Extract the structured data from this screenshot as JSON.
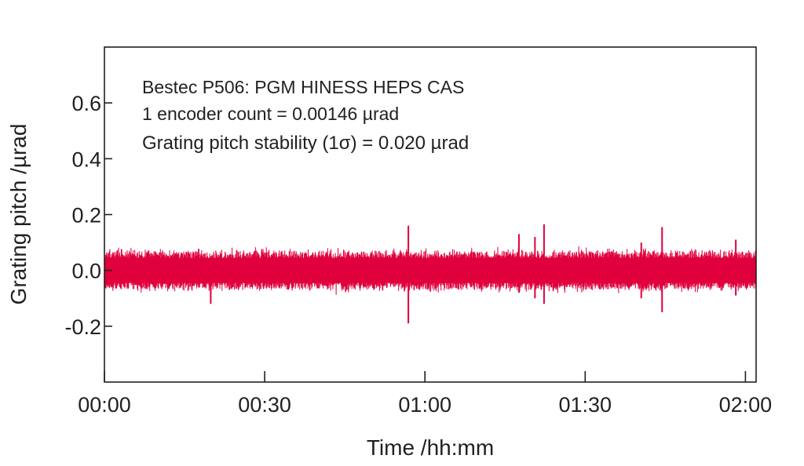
{
  "chart_data": {
    "type": "line",
    "title": "",
    "xlabel": "Time /hh:mm",
    "ylabel": "Grating pitch /µrad",
    "xlim_minutes": [
      0,
      122
    ],
    "ylim": [
      -0.4,
      0.8
    ],
    "xticks": [
      {
        "minutes": 0,
        "label": "00:00"
      },
      {
        "minutes": 30,
        "label": "00:30"
      },
      {
        "minutes": 60,
        "label": "01:00"
      },
      {
        "minutes": 90,
        "label": "01:30"
      },
      {
        "minutes": 120,
        "label": "02:00"
      }
    ],
    "yticks": [
      {
        "value": 0.6,
        "label": "0.6"
      },
      {
        "value": 0.4,
        "label": "0.4"
      },
      {
        "value": 0.2,
        "label": "0.2"
      },
      {
        "value": 0.0,
        "label": "0.0"
      },
      {
        "value": -0.2,
        "label": "-0.2"
      }
    ],
    "grid": false,
    "annotations": [
      "Bestec P506: PGM HINESS HEPS CAS",
      "1 encoder count = 0.00146 µrad",
      "Grating pitch stability (1σ) = 0.020 µrad"
    ],
    "series": [
      {
        "name": "grating pitch",
        "color": "#e0003c",
        "mean": 0.0,
        "sigma": 0.02,
        "typical_envelope": [
          -0.07,
          0.07
        ],
        "spikes": [
          {
            "minutes": 19.9,
            "min": -0.12,
            "max": 0.05
          },
          {
            "minutes": 56.9,
            "min": -0.19,
            "max": 0.16
          },
          {
            "minutes": 77.6,
            "min": -0.08,
            "max": 0.13
          },
          {
            "minutes": 82.3,
            "min": -0.12,
            "max": 0.165
          },
          {
            "minutes": 80.6,
            "min": -0.1,
            "max": 0.12
          },
          {
            "minutes": 100.5,
            "min": -0.1,
            "max": 0.1
          },
          {
            "minutes": 104.4,
            "min": -0.15,
            "max": 0.155
          },
          {
            "minutes": 118.2,
            "min": -0.09,
            "max": 0.11
          }
        ]
      }
    ]
  }
}
